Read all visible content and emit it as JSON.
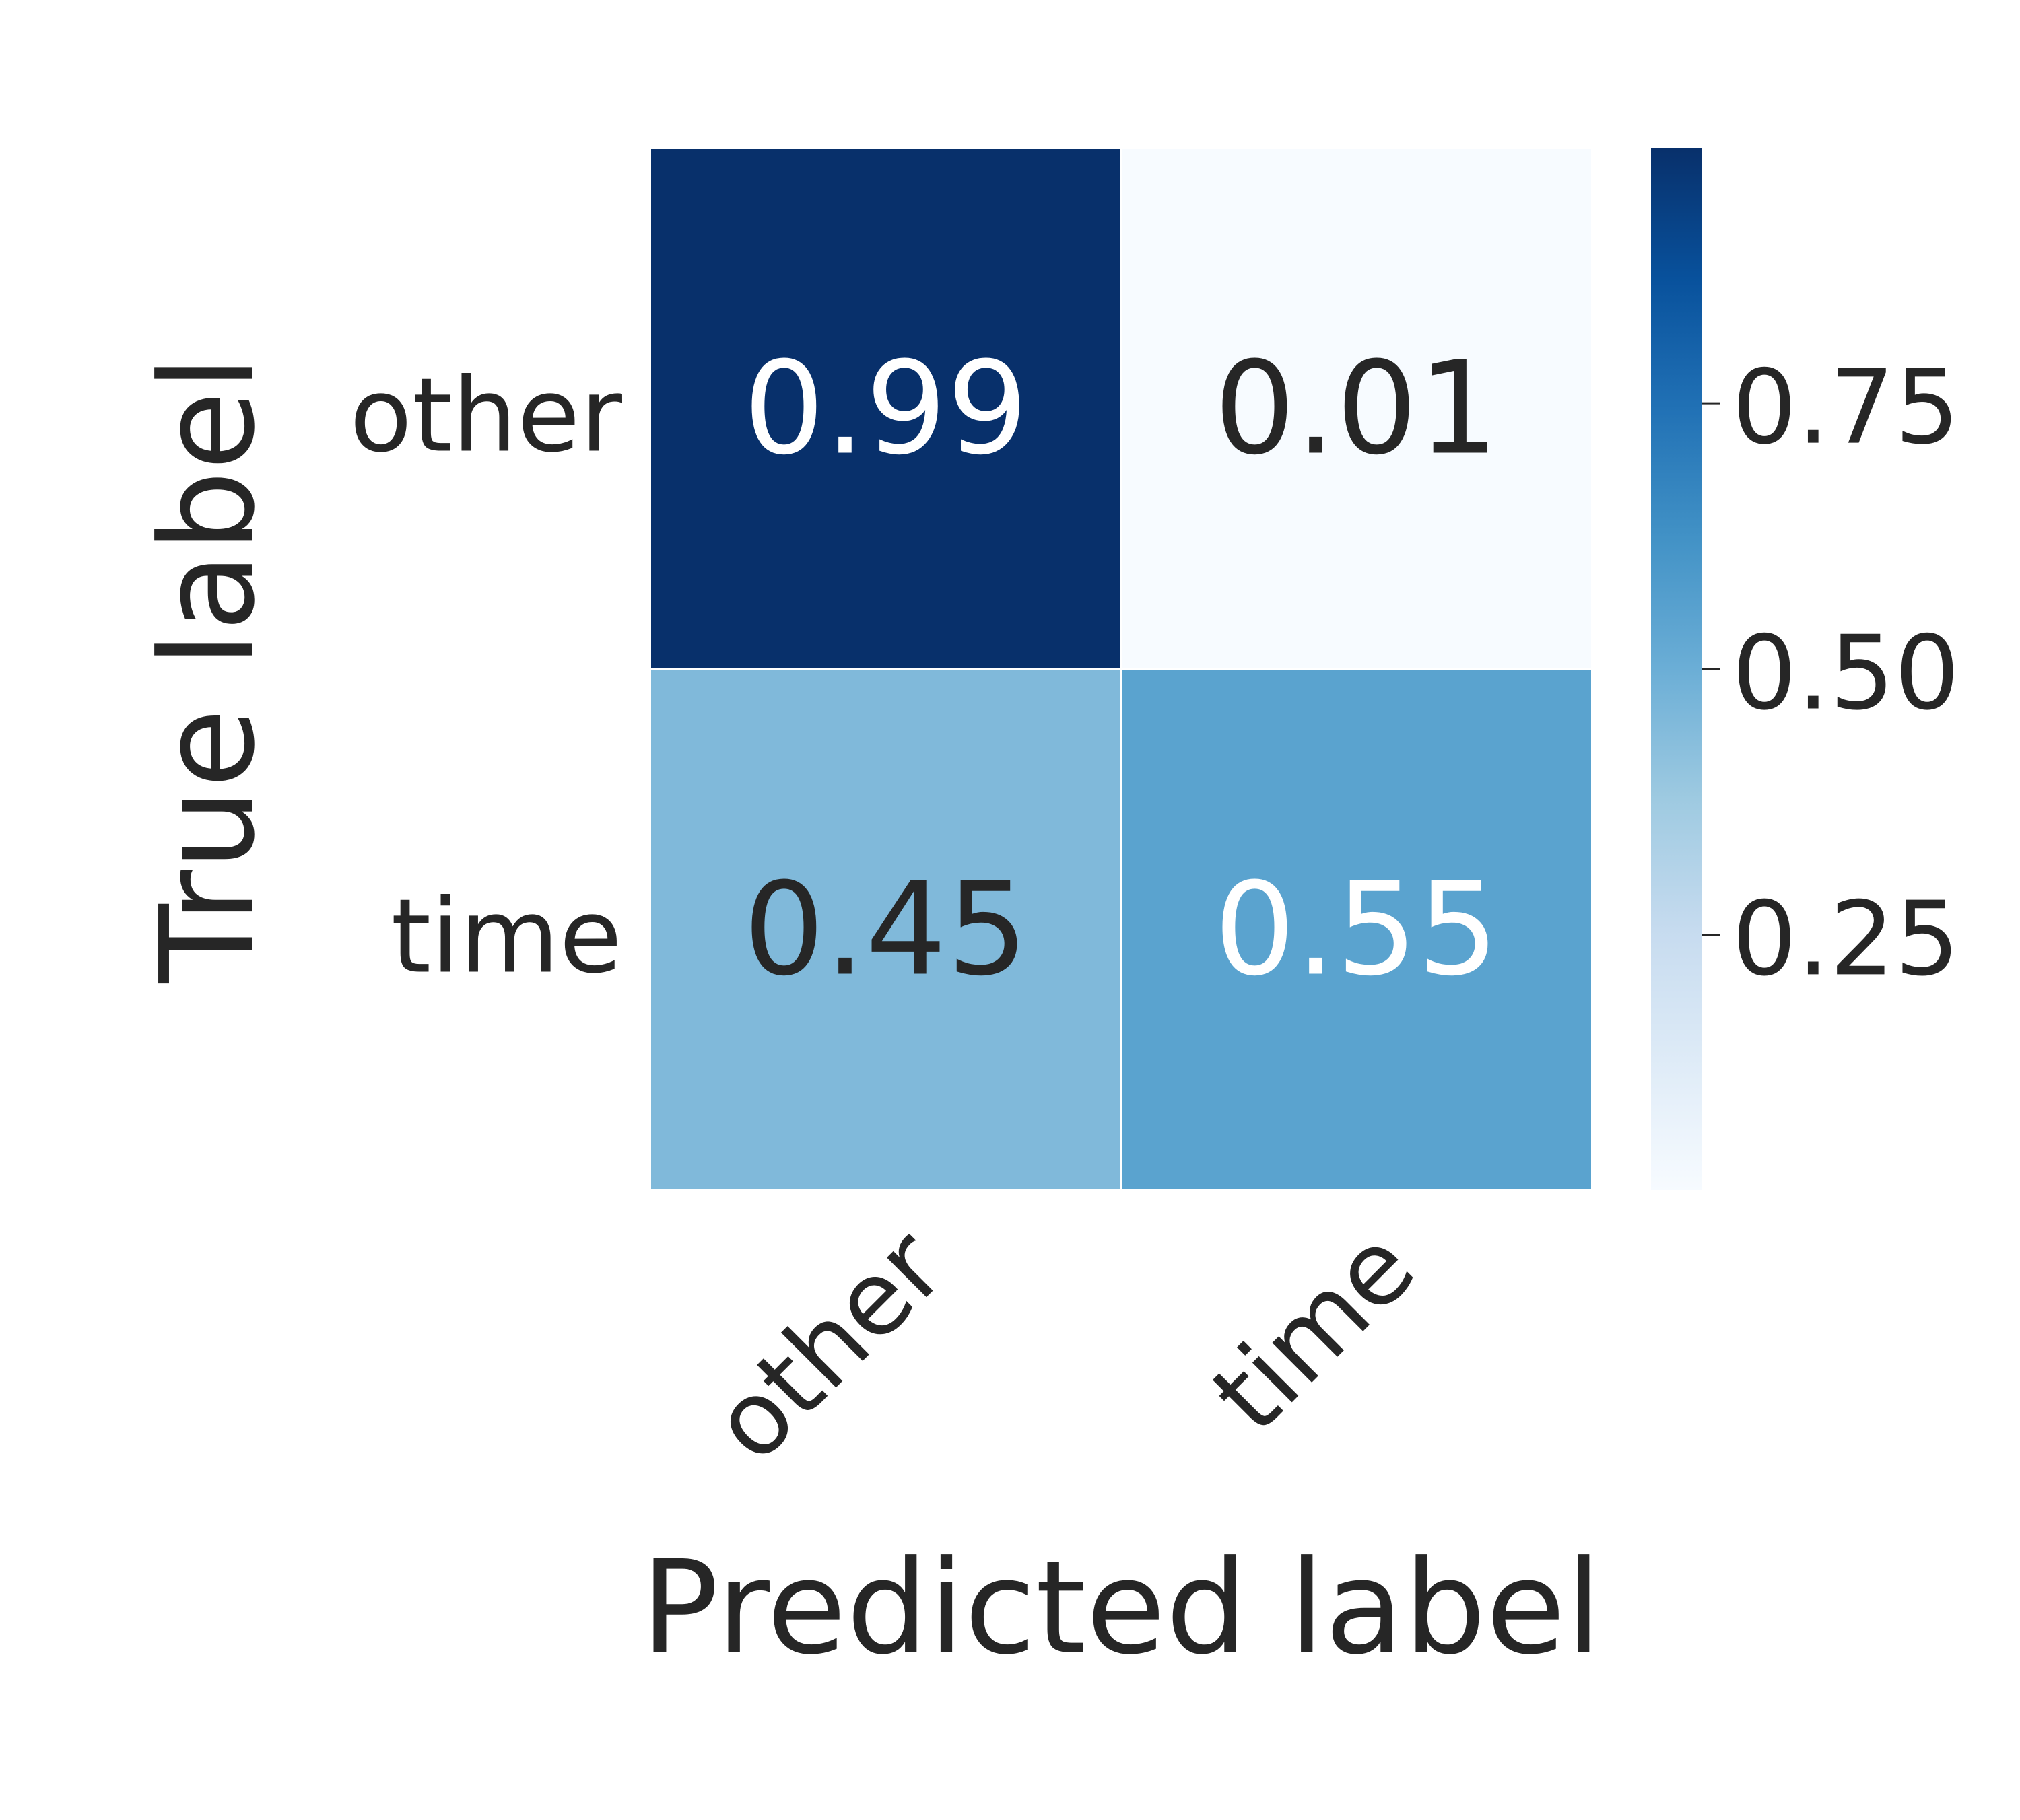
{
  "chart_data": {
    "type": "heatmap",
    "title": "",
    "xlabel": "Predicted label",
    "ylabel": "True label",
    "x_categories": [
      "other",
      "time"
    ],
    "y_categories": [
      "other",
      "time"
    ],
    "values": [
      [
        0.99,
        0.01
      ],
      [
        0.45,
        0.55
      ]
    ],
    "colormap": "Blues",
    "colormap_stops": [
      "#f7fbff",
      "#deebf7",
      "#c6dbef",
      "#9ecae1",
      "#6baed6",
      "#4292c6",
      "#2171b5",
      "#08519c",
      "#08306b"
    ],
    "color_range": [
      0.01,
      0.99
    ],
    "colorbar": {
      "ticks": [
        0.25,
        0.5,
        0.75
      ],
      "tick_labels": [
        "0.25",
        "0.50",
        "0.75"
      ]
    },
    "text_colors": {
      "light": "#ffffff",
      "dark": "#262626"
    },
    "grid": false,
    "legend": "colorbar-right"
  }
}
